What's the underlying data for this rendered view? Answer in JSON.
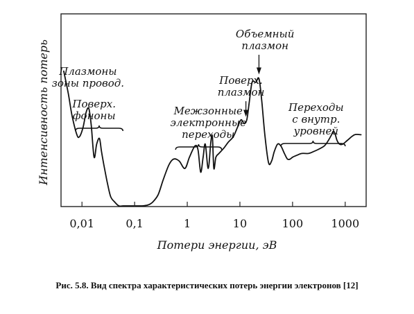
{
  "chart_data": {
    "type": "line",
    "xscale": "log",
    "xlim": [
      0.004,
      2500
    ],
    "xlabel": "Потери энергии, эВ",
    "ylabel": "Интенсивность потерь",
    "xticks": [
      {
        "value": 0.01,
        "label": "0,01"
      },
      {
        "value": 0.1,
        "label": "0,1"
      },
      {
        "value": 1,
        "label": "1"
      },
      {
        "value": 10,
        "label": "10"
      },
      {
        "value": 100,
        "label": "100"
      },
      {
        "value": 1000,
        "label": "1000"
      }
    ],
    "grid": false,
    "series": [
      {
        "x": [
          0.0045,
          0.0055,
          0.0065,
          0.008,
          0.009,
          0.0105,
          0.012,
          0.0135,
          0.015,
          0.017,
          0.019,
          0.0215,
          0.0235,
          0.026,
          0.03,
          0.035,
          0.042,
          0.05,
          0.06,
          0.075,
          0.09,
          0.11,
          0.14,
          0.18,
          0.22,
          0.28,
          0.35,
          0.45,
          0.55,
          0.7,
          0.9,
          1.1,
          1.4,
          1.6,
          1.8,
          2.0,
          2.2,
          2.5,
          2.8,
          3.0,
          3.2,
          3.5,
          4.0,
          5.0,
          6.0,
          7.5,
          9.0,
          10.5,
          12.0,
          13.5,
          15.0,
          17.0,
          20.0,
          23.0,
          26.0,
          30.0,
          35.0,
          40.0,
          45.0,
          52.0,
          60.0,
          70.0,
          80.0,
          90.0,
          100.0,
          120.0,
          150.0,
          200.0,
          250.0,
          300.0,
          400.0,
          480.0,
          550.0,
          600.0,
          650.0,
          700.0,
          780.0,
          900.0,
          1100.0,
          1500.0,
          2000.0
        ],
        "y": [
          0.72,
          0.6,
          0.48,
          0.38,
          0.37,
          0.42,
          0.5,
          0.52,
          0.43,
          0.26,
          0.33,
          0.36,
          0.29,
          0.22,
          0.13,
          0.05,
          0.02,
          0.0,
          0.0,
          0.0,
          0.0,
          0.0,
          0.0,
          0.005,
          0.02,
          0.06,
          0.14,
          0.22,
          0.25,
          0.24,
          0.2,
          0.26,
          0.32,
          0.3,
          0.18,
          0.26,
          0.33,
          0.2,
          0.34,
          0.37,
          0.2,
          0.26,
          0.28,
          0.31,
          0.34,
          0.37,
          0.42,
          0.46,
          0.44,
          0.46,
          0.55,
          0.66,
          0.66,
          0.68,
          0.56,
          0.37,
          0.23,
          0.24,
          0.29,
          0.33,
          0.32,
          0.28,
          0.25,
          0.25,
          0.26,
          0.27,
          0.28,
          0.28,
          0.29,
          0.3,
          0.32,
          0.35,
          0.38,
          0.4,
          0.38,
          0.35,
          0.33,
          0.33,
          0.35,
          0.38,
          0.38
        ]
      }
    ],
    "annotations": [
      {
        "x": 0.013,
        "lines": [
          "Плазмоны",
          "зоны провод."
        ]
      },
      {
        "x": 0.017,
        "lines": [
          "Поверх.",
          "фононы"
        ],
        "bracket": [
          0.0075,
          0.06
        ]
      },
      {
        "x": 2.5,
        "lines": [
          "Межзонные",
          "электронные",
          "переходы"
        ],
        "bracket": [
          0.6,
          4.5
        ]
      },
      {
        "x": 10.5,
        "lines": [
          "Поверх.",
          "плазмон"
        ],
        "arrow_to": 13
      },
      {
        "x": 30,
        "lines": [
          "Объемный",
          "плазмон"
        ],
        "arrow_to": 23
      },
      {
        "x": 280,
        "lines": [
          "Переходы",
          "с внутр.",
          "уровней"
        ],
        "bracket": [
          60,
          1000
        ]
      }
    ]
  },
  "caption": "Рис. 5.8. Вид спектра характеристических потерь энергии электронов [12]"
}
